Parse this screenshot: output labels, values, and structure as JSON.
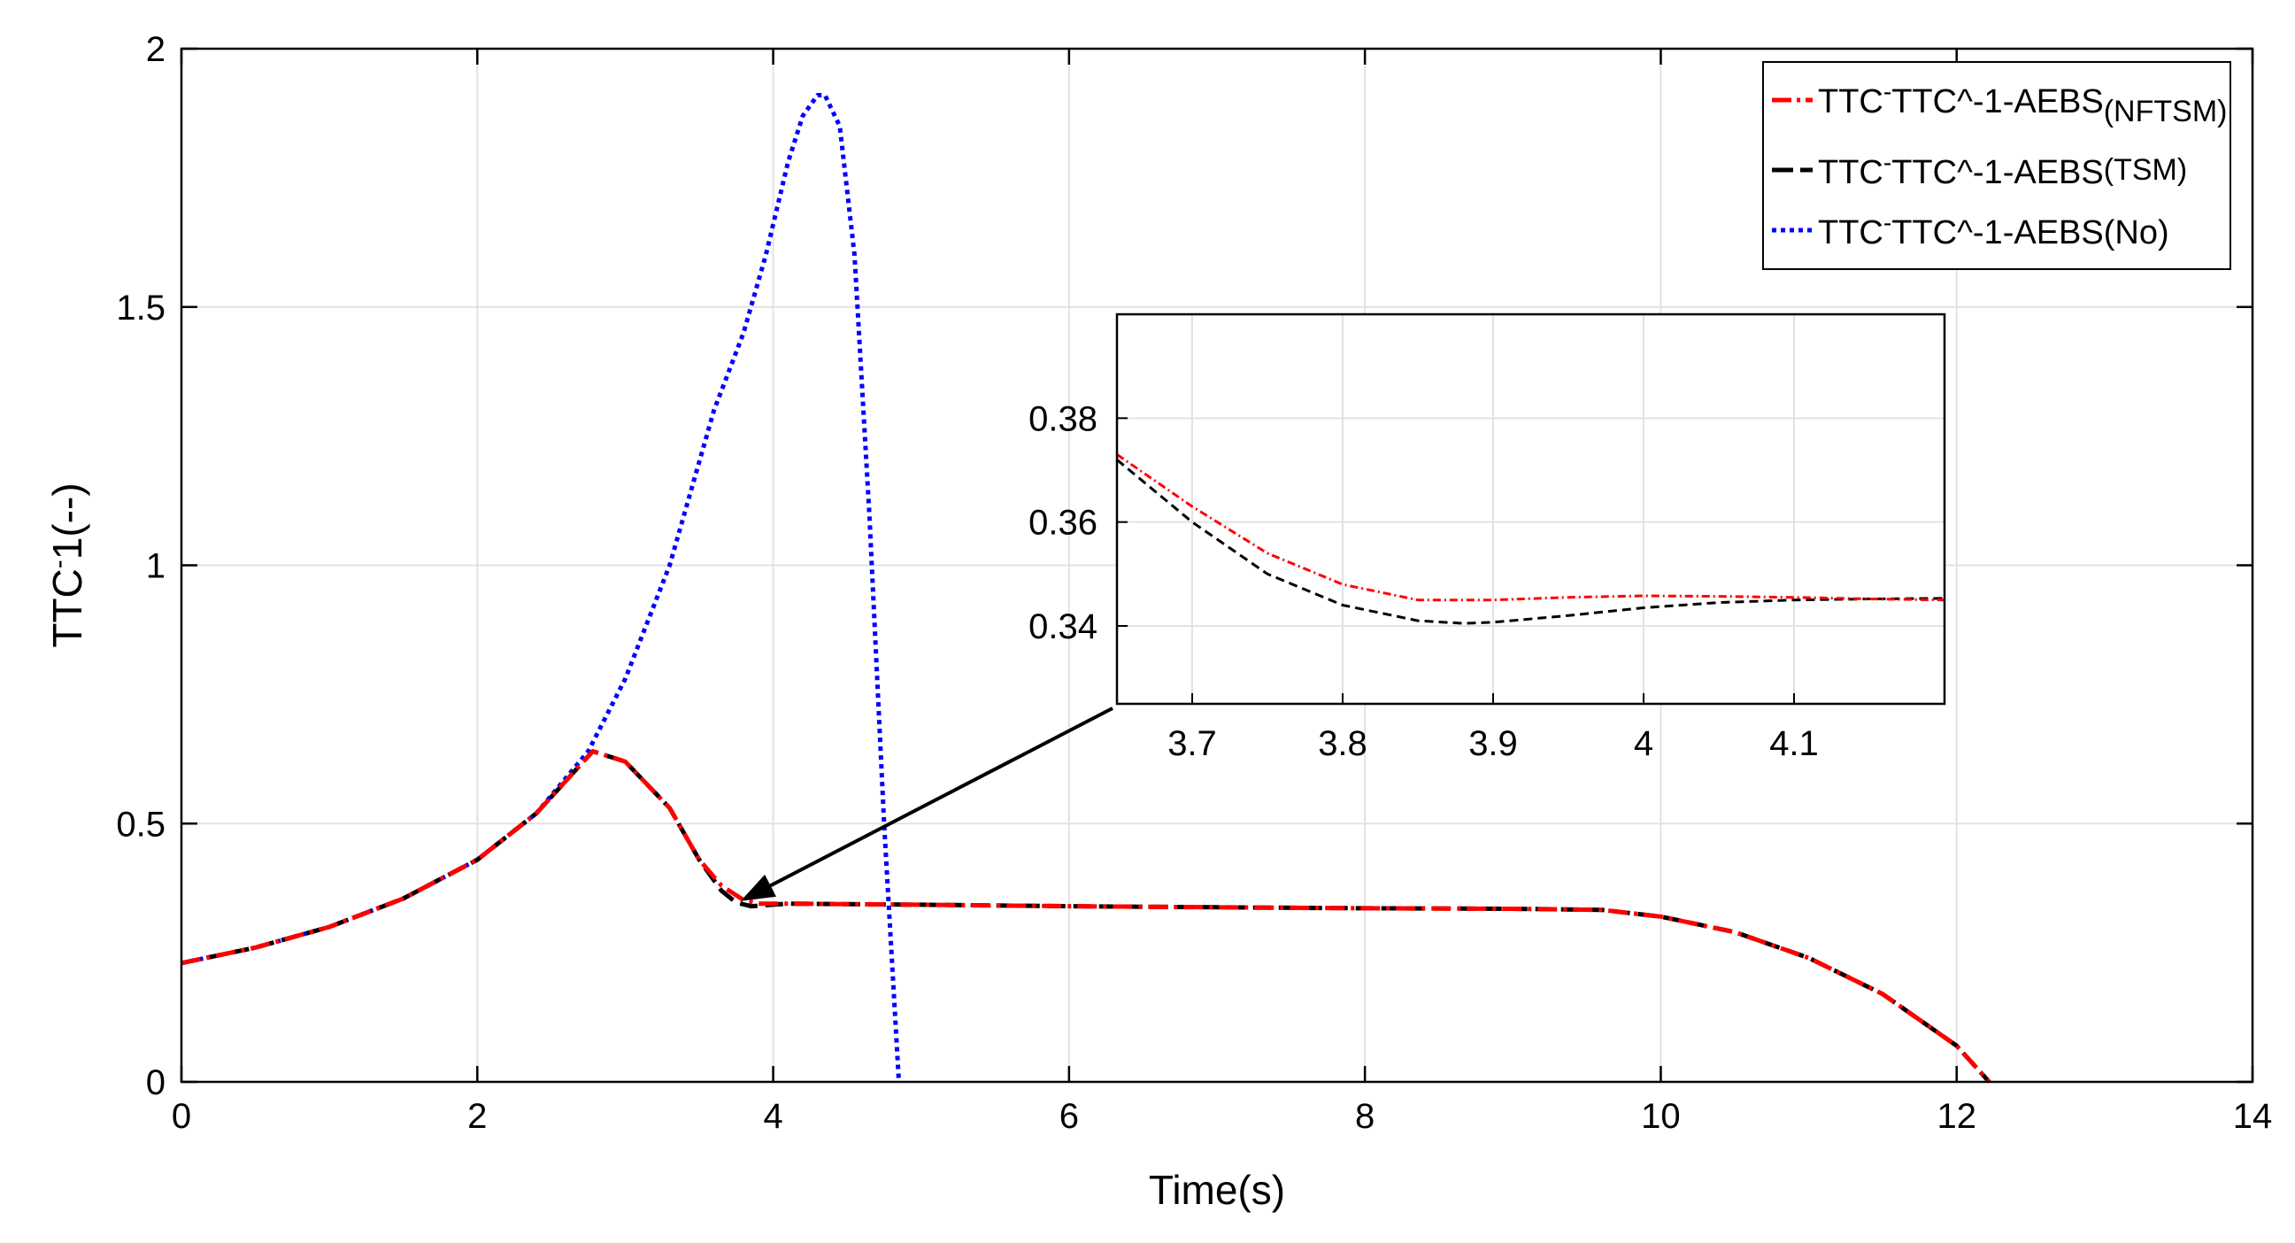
{
  "chart_data": {
    "type": "line",
    "xlabel": "Time(s)",
    "ylabel": "TTC^-1(--)",
    "xlim": [
      0,
      14
    ],
    "ylim": [
      0,
      2
    ],
    "xticks": [
      0,
      2,
      4,
      6,
      8,
      10,
      12,
      14
    ],
    "yticks": [
      0,
      0.5,
      1,
      1.5,
      2
    ],
    "xtick_labels": [
      "0",
      "2",
      "4",
      "6",
      "8",
      "10",
      "12",
      "14"
    ],
    "ytick_labels": [
      "0",
      "0.5",
      "1",
      "1.5",
      "2"
    ],
    "grid": true,
    "legend_position": "top-right",
    "series": [
      {
        "name": "TTC^-1-AEBS",
        "name_suffix": "(NFTSM)",
        "color": "#ff0000",
        "style": "dash-dot",
        "x": [
          0,
          0.5,
          1,
          1.5,
          2,
          2.4,
          2.78,
          3.0,
          3.3,
          3.5,
          3.65,
          3.8,
          3.9,
          4.0,
          4.1,
          5,
          6,
          7,
          8,
          9,
          9.6,
          10,
          10.5,
          11,
          11.5,
          12,
          12.22
        ],
        "y": [
          0.23,
          0.26,
          0.3,
          0.355,
          0.43,
          0.52,
          0.64,
          0.62,
          0.53,
          0.43,
          0.38,
          0.352,
          0.345,
          0.345,
          0.345,
          0.343,
          0.34,
          0.338,
          0.336,
          0.335,
          0.333,
          0.32,
          0.29,
          0.24,
          0.17,
          0.07,
          0
        ]
      },
      {
        "name": "TTC^-1-AEBS",
        "name_suffix": "(TSM)",
        "color": "#000000",
        "style": "dashed",
        "x": [
          0,
          0.5,
          1,
          1.5,
          2,
          2.4,
          2.78,
          3.0,
          3.3,
          3.5,
          3.65,
          3.75,
          3.85,
          3.95,
          4.1,
          5,
          6,
          7,
          8,
          9,
          9.6,
          10,
          10.5,
          11,
          11.5,
          12,
          12.22
        ],
        "y": [
          0.23,
          0.26,
          0.3,
          0.355,
          0.43,
          0.52,
          0.64,
          0.62,
          0.53,
          0.43,
          0.37,
          0.347,
          0.34,
          0.342,
          0.345,
          0.343,
          0.34,
          0.338,
          0.336,
          0.335,
          0.333,
          0.32,
          0.29,
          0.24,
          0.17,
          0.07,
          0
        ]
      },
      {
        "name": "TTC^-1-AEBS",
        "name_suffix": "(No)",
        "color": "#0000ff",
        "style": "dotted",
        "x": [
          0,
          0.5,
          1,
          1.5,
          2,
          2.4,
          2.75,
          3.0,
          3.3,
          3.6,
          3.8,
          3.95,
          4.1,
          4.2,
          4.3,
          4.35,
          4.45,
          4.55,
          4.65,
          4.75,
          4.85
        ],
        "y": [
          0.23,
          0.26,
          0.3,
          0.355,
          0.43,
          0.52,
          0.64,
          0.78,
          1.0,
          1.3,
          1.45,
          1.6,
          1.78,
          1.87,
          1.91,
          1.91,
          1.85,
          1.6,
          1.1,
          0.5,
          0
        ]
      }
    ],
    "inset": {
      "xlim": [
        3.65,
        4.2
      ],
      "ylim": [
        0.325,
        0.4
      ],
      "xticks": [
        3.7,
        3.8,
        3.9,
        4,
        4.1
      ],
      "yticks": [
        0.34,
        0.36,
        0.38
      ],
      "xtick_labels": [
        "3.7",
        "3.8",
        "3.9",
        "4",
        "4.1"
      ],
      "ytick_labels": [
        "0.34",
        "0.36",
        "0.38"
      ],
      "arrow_target": [
        3.78,
        0.35
      ],
      "series": [
        {
          "name": "TTC^-1-AEBS(NFTSM)",
          "color": "#ff0000",
          "style": "dash-dot",
          "x": [
            3.65,
            3.7,
            3.75,
            3.8,
            3.85,
            3.9,
            3.95,
            4.0,
            4.05,
            4.1,
            4.15,
            4.2
          ],
          "y": [
            0.373,
            0.363,
            0.354,
            0.348,
            0.345,
            0.345,
            0.3455,
            0.3458,
            0.3457,
            0.3455,
            0.3452,
            0.345
          ]
        },
        {
          "name": "TTC^-1-AEBS(TSM)",
          "color": "#000000",
          "style": "dashed",
          "x": [
            3.65,
            3.7,
            3.75,
            3.8,
            3.85,
            3.88,
            3.9,
            3.95,
            4.0,
            4.05,
            4.1,
            4.15,
            4.2
          ],
          "y": [
            0.372,
            0.36,
            0.35,
            0.344,
            0.341,
            0.3405,
            0.3407,
            0.342,
            0.3435,
            0.3445,
            0.345,
            0.3452,
            0.3453
          ]
        }
      ]
    }
  }
}
